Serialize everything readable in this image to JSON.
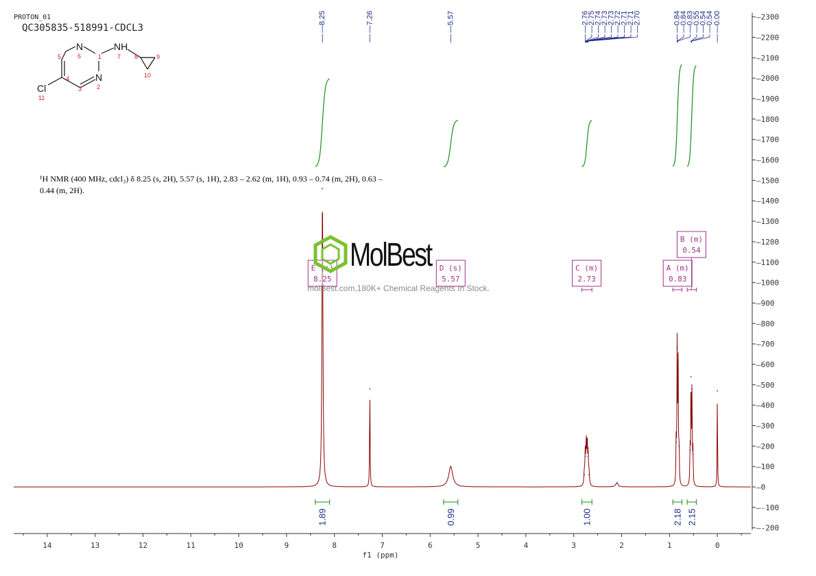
{
  "header": {
    "experiment": "PROTON_01",
    "sample": "QC305835-518991-CDCL3"
  },
  "description": {
    "line1": "¹H NMR (400 MHz, cdcl₃) δ 8.25 (s, 2H), 5.57 (s, 1H), 2.83 – 2.62 (m, 1H), 0.93 – 0.74 (m, 2H), 0.63 –",
    "line2": "0.44 (m, 2H)."
  },
  "watermark": {
    "name": "MolBest",
    "tagline": "molBest.com,180K+ Chemical Reagents In Stock."
  },
  "colors": {
    "spectrum": "#8b0000",
    "peak_labels": "#1f2a8a",
    "integrals": "#1a8a1a",
    "multiplets": "#a0308a",
    "structure_atoms": "#d02020"
  },
  "structure": {
    "atoms": [
      {
        "symbol": "N",
        "number": "6"
      },
      {
        "symbol": "N",
        "number": "2"
      },
      {
        "symbol": "NH",
        "number": "7"
      },
      {
        "symbol": "Cl",
        "number": "11"
      }
    ],
    "numbers": [
      "1",
      "3",
      "4",
      "5",
      "8",
      "9",
      "10"
    ]
  },
  "chart_data": {
    "type": "line",
    "xlabel": "f1 (ppm)",
    "ylabel": "",
    "xlim": [
      14.7,
      -0.7
    ],
    "ylim": [
      -200,
      2300
    ],
    "x_ticks": [
      "14",
      "13",
      "12",
      "11",
      "10",
      "9",
      "8",
      "7",
      "6",
      "5",
      "4",
      "3",
      "2",
      "1",
      "0"
    ],
    "y_ticks": [
      "-200",
      "-100",
      "0",
      "100",
      "200",
      "300",
      "400",
      "500",
      "600",
      "700",
      "800",
      "900",
      "1000",
      "1100",
      "1200",
      "1300",
      "1400",
      "1500",
      "1600",
      "1700",
      "1800",
      "1900",
      "2000",
      "2100",
      "2200",
      "2300"
    ],
    "peaks": [
      {
        "ppm": 8.25,
        "height": 1460,
        "width": 0.012
      },
      {
        "ppm": 7.26,
        "height": 480,
        "width": 0.006
      },
      {
        "ppm": 5.57,
        "height": 100,
        "width": 0.05
      },
      {
        "ppm": 2.78,
        "height": 60,
        "width": 0.01
      },
      {
        "ppm": 2.76,
        "height": 150,
        "width": 0.008
      },
      {
        "ppm": 2.74,
        "height": 200,
        "width": 0.008
      },
      {
        "ppm": 2.72,
        "height": 210,
        "width": 0.008
      },
      {
        "ppm": 2.7,
        "height": 150,
        "width": 0.008
      },
      {
        "ppm": 2.68,
        "height": 60,
        "width": 0.01
      },
      {
        "ppm": 2.1,
        "height": 20,
        "width": 0.03
      },
      {
        "ppm": 0.86,
        "height": 220,
        "width": 0.006
      },
      {
        "ppm": 0.84,
        "height": 680,
        "width": 0.006
      },
      {
        "ppm": 0.82,
        "height": 620,
        "width": 0.006
      },
      {
        "ppm": 0.8,
        "height": 200,
        "width": 0.006
      },
      {
        "ppm": 0.57,
        "height": 180,
        "width": 0.006
      },
      {
        "ppm": 0.55,
        "height": 540,
        "width": 0.006
      },
      {
        "ppm": 0.53,
        "height": 480,
        "width": 0.006
      },
      {
        "ppm": 0.51,
        "height": 160,
        "width": 0.006
      },
      {
        "ppm": 0.0,
        "height": 470,
        "width": 0.005
      }
    ],
    "peak_labels": [
      {
        "text": "8.25",
        "ppm": 8.25
      },
      {
        "text": "7.26",
        "ppm": 7.26
      },
      {
        "text": "5.57",
        "ppm": 5.57
      },
      {
        "text": "2.76",
        "ppm": 2.76
      },
      {
        "text": "2.75",
        "ppm": 2.75
      },
      {
        "text": "2.74",
        "ppm": 2.74
      },
      {
        "text": "2.73",
        "ppm": 2.73
      },
      {
        "text": "2.73",
        "ppm": 2.73
      },
      {
        "text": "2.72",
        "ppm": 2.72
      },
      {
        "text": "2.71",
        "ppm": 2.71
      },
      {
        "text": "2.71",
        "ppm": 2.71
      },
      {
        "text": "2.70",
        "ppm": 2.7
      },
      {
        "text": "0.84",
        "ppm": 0.84
      },
      {
        "text": "0.84",
        "ppm": 0.84
      },
      {
        "text": "0.83",
        "ppm": 0.83
      },
      {
        "text": "0.55",
        "ppm": 0.55
      },
      {
        "text": "0.54",
        "ppm": 0.54
      },
      {
        "text": "0.54",
        "ppm": 0.54
      },
      {
        "text": "0.00",
        "ppm": 0.0
      }
    ],
    "integrations": [
      {
        "value": "1.89",
        "from": 8.4,
        "to": 8.1
      },
      {
        "value": "0.99",
        "from": 5.72,
        "to": 5.42
      },
      {
        "value": "1.00",
        "from": 2.83,
        "to": 2.62
      },
      {
        "value": "2.18",
        "from": 0.93,
        "to": 0.74
      },
      {
        "value": "2.15",
        "from": 0.63,
        "to": 0.44
      }
    ],
    "integral_curves": [
      {
        "from": 8.4,
        "to": 8.1,
        "start": 1565,
        "end": 2000
      },
      {
        "from": 5.72,
        "to": 5.42,
        "start": 1565,
        "end": 1795
      },
      {
        "from": 2.83,
        "to": 2.62,
        "start": 1565,
        "end": 1795
      },
      {
        "from": 0.93,
        "to": 0.74,
        "start": 1565,
        "end": 2070
      },
      {
        "from": 0.63,
        "to": 0.44,
        "start": 1565,
        "end": 2065
      }
    ],
    "multiplets": [
      {
        "label": "E (s)",
        "shift": "8.25",
        "ppm": 8.25
      },
      {
        "label": "D (s)",
        "shift": "5.57",
        "ppm": 5.57
      },
      {
        "label": "C (m)",
        "shift": "2.73",
        "ppm": 2.73,
        "range": [
          2.83,
          2.62
        ]
      },
      {
        "label": "A (m)",
        "shift": "0.83",
        "ppm": 0.83,
        "range": [
          0.93,
          0.74
        ]
      },
      {
        "label": "B (m)",
        "shift": "0.54",
        "ppm": 0.54,
        "range": [
          0.63,
          0.44
        ],
        "raised": true
      }
    ]
  }
}
